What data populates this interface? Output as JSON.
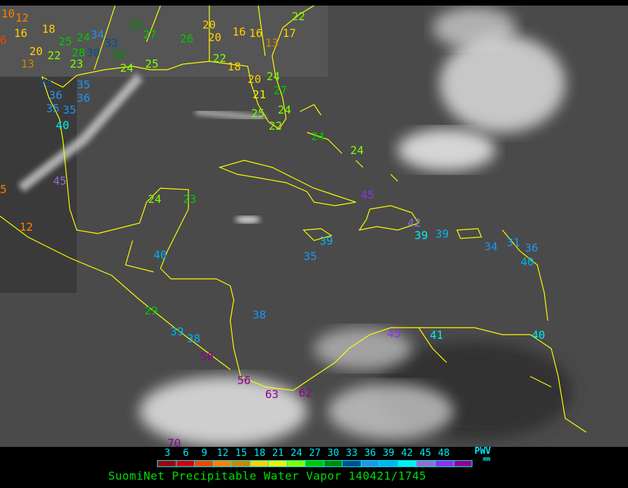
{
  "map": {
    "product": "SuomiNet Precipitable Water Vapor",
    "basemap": "infrared satellite imagery with yellow coastlines and borders",
    "stations": [
      {
        "v": "10",
        "c": 12
      },
      {
        "v": "12",
        "c": 12
      },
      {
        "v": "16",
        "c": 18
      },
      {
        "v": "18",
        "c": 18
      },
      {
        "v": "6",
        "c": 9
      },
      {
        "v": "20",
        "c": 18
      },
      {
        "v": "22",
        "c": 24
      },
      {
        "v": "25",
        "c": 27
      },
      {
        "v": "13",
        "c": 15
      },
      {
        "v": "23",
        "c": 24
      },
      {
        "v": "28",
        "c": 27
      },
      {
        "v": "30",
        "c": 33
      },
      {
        "v": "34",
        "c": 36
      },
      {
        "v": "33",
        "c": 33
      },
      {
        "v": "30",
        "c": 30
      },
      {
        "v": "24",
        "c": 27
      },
      {
        "v": "27",
        "c": 27
      },
      {
        "v": "29",
        "c": 30
      },
      {
        "v": "26",
        "c": 27
      },
      {
        "v": "20",
        "c": 18
      },
      {
        "v": "20",
        "c": 18
      },
      {
        "v": "16",
        "c": 18
      },
      {
        "v": "16",
        "c": 18
      },
      {
        "v": "13",
        "c": 15
      },
      {
        "v": "17",
        "c": 18
      },
      {
        "v": "22",
        "c": 24
      },
      {
        "v": "22",
        "c": 24
      },
      {
        "v": "18",
        "c": 18
      },
      {
        "v": "20",
        "c": 18
      },
      {
        "v": "24",
        "c": 24
      },
      {
        "v": "21",
        "c": 21
      },
      {
        "v": "27",
        "c": 27
      },
      {
        "v": "25",
        "c": 24
      },
      {
        "v": "24",
        "c": 24
      },
      {
        "v": "22",
        "c": 24
      },
      {
        "v": "32",
        "c": 33
      },
      {
        "v": "36",
        "c": 36
      },
      {
        "v": "35",
        "c": 36
      },
      {
        "v": "35",
        "c": 36
      },
      {
        "v": "36",
        "c": 36
      },
      {
        "v": "35",
        "c": 36
      },
      {
        "v": "40",
        "c": 42
      },
      {
        "v": "25",
        "c": 24
      },
      {
        "v": "24",
        "c": 24
      },
      {
        "v": "5",
        "c": 12
      },
      {
        "v": "12",
        "c": 12
      },
      {
        "v": "45",
        "c": 45
      },
      {
        "v": "24",
        "c": 24
      },
      {
        "v": "23",
        "c": 27
      },
      {
        "v": "40",
        "c": 39
      },
      {
        "v": "24",
        "c": 27
      },
      {
        "v": "24",
        "c": 24
      },
      {
        "v": "45",
        "c": 48
      },
      {
        "v": "42",
        "c": 45
      },
      {
        "v": "39",
        "c": 39
      },
      {
        "v": "35",
        "c": 36
      },
      {
        "v": "39",
        "c": 42
      },
      {
        "v": "39",
        "c": 39
      },
      {
        "v": "34",
        "c": 36
      },
      {
        "v": "31",
        "c": 36
      },
      {
        "v": "36",
        "c": 36
      },
      {
        "v": "40",
        "c": 39
      },
      {
        "v": "38",
        "c": 36
      },
      {
        "v": "39",
        "c": 39
      },
      {
        "v": "38",
        "c": 39
      },
      {
        "v": "29",
        "c": 27
      },
      {
        "v": "56",
        "c": 51
      },
      {
        "v": "56",
        "c": 51
      },
      {
        "v": "63",
        "c": 51
      },
      {
        "v": "62",
        "c": 51
      },
      {
        "v": "70",
        "c": 51
      },
      {
        "v": "45",
        "c": 48
      },
      {
        "v": "41",
        "c": 42
      },
      {
        "v": "40",
        "c": 42
      }
    ]
  },
  "legend": {
    "ticks": [
      "3",
      "6",
      "9",
      "12",
      "15",
      "18",
      "21",
      "24",
      "27",
      "30",
      "33",
      "36",
      "39",
      "42",
      "45",
      "48"
    ],
    "colors": [
      "#a00010",
      "#d00010",
      "#f04800",
      "#ff8000",
      "#c88800",
      "#ffd000",
      "#f0f000",
      "#80ff00",
      "#00c800",
      "#008c00",
      "#005090",
      "#2094f0",
      "#00b4ec",
      "#00f0f0",
      "#9070d0",
      "#9030f0",
      "#900090"
    ],
    "unit_top": "PWV",
    "unit_bottom": "mm"
  },
  "title": "SuomiNet Precipitable Water Vapor 140421/1745"
}
